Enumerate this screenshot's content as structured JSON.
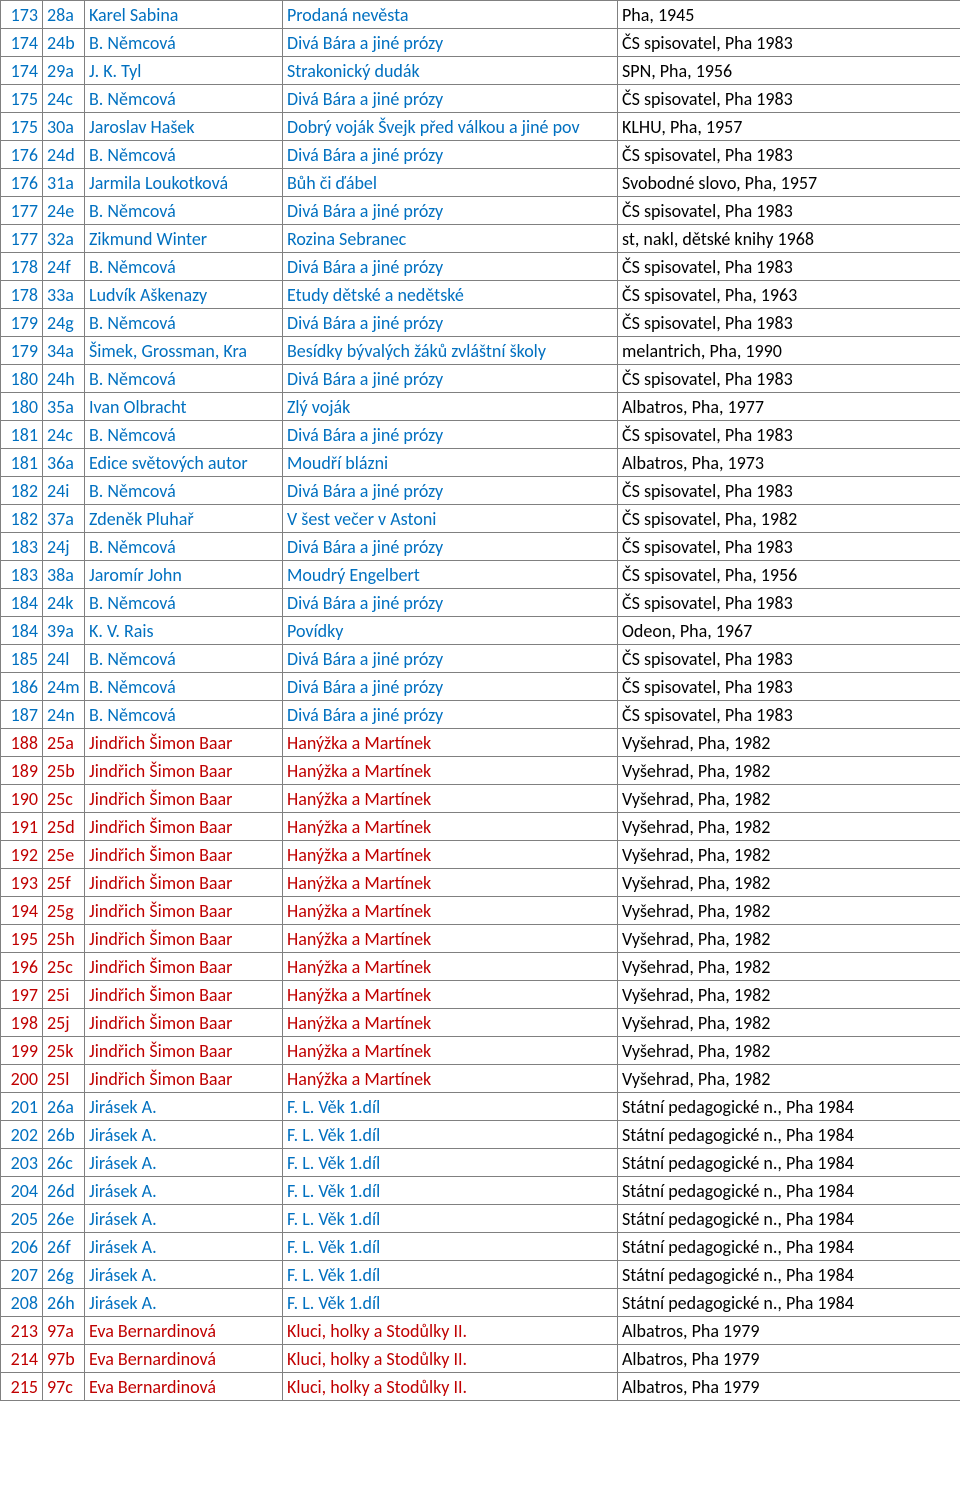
{
  "colors": {
    "blue": "#0070c0",
    "red": "#c00000",
    "black": "#000000"
  },
  "rows": [
    {
      "num": "173",
      "code": "28a",
      "author": "Karel Sabina",
      "title": "Prodaná nevěsta",
      "pub": "Pha, 1945",
      "color": "blue"
    },
    {
      "num": "174",
      "code": "24b",
      "author": "B. Němcová",
      "title": "Divá Bára a jiné prózy",
      "pub": "ČS spisovatel, Pha 1983",
      "color": "blue"
    },
    {
      "num": "174",
      "code": "29a",
      "author": "J. K. Tyl",
      "title": "Strakonický dudák",
      "pub": "SPN, Pha, 1956",
      "color": "blue"
    },
    {
      "num": "175",
      "code": "24c",
      "author": "B. Němcová",
      "title": "Divá Bára a jiné prózy",
      "pub": "ČS spisovatel, Pha 1983",
      "color": "blue"
    },
    {
      "num": "175",
      "code": "30a",
      "author": "Jaroslav Hašek",
      "title": "Dobrý voják Švejk před válkou a jiné pov",
      "pub": "KLHU, Pha, 1957",
      "color": "blue"
    },
    {
      "num": "176",
      "code": "24d",
      "author": "B. Němcová",
      "title": "Divá Bára a jiné prózy",
      "pub": "ČS spisovatel, Pha 1983",
      "color": "blue"
    },
    {
      "num": "176",
      "code": "31a",
      "author": "Jarmila Loukotková",
      "title": "Bůh či ďábel",
      "pub": "Svobodné slovo, Pha, 1957",
      "color": "blue"
    },
    {
      "num": "177",
      "code": "24e",
      "author": "B. Němcová",
      "title": "Divá Bára a jiné prózy",
      "pub": "ČS spisovatel, Pha 1983",
      "color": "blue"
    },
    {
      "num": "177",
      "code": "32a",
      "author": "Zikmund Winter",
      "title": "Rozina Sebranec",
      "pub": "st, nakl, dětské knihy 1968",
      "color": "blue"
    },
    {
      "num": "178",
      "code": "24f",
      "author": "B. Němcová",
      "title": "Divá Bára a jiné prózy",
      "pub": "ČS spisovatel, Pha 1983",
      "color": "blue"
    },
    {
      "num": "178",
      "code": "33a",
      "author": "Ludvík Aškenazy",
      "title": "Etudy dětské a nedětské",
      "pub": "ČS spisovatel, Pha, 1963",
      "color": "blue"
    },
    {
      "num": "179",
      "code": "24g",
      "author": "B. Němcová",
      "title": "Divá Bára a jiné prózy",
      "pub": "ČS spisovatel, Pha 1983",
      "color": "blue"
    },
    {
      "num": "179",
      "code": "34a",
      "author": "Šimek, Grossman, Kra",
      "title": "Besídky bývalých žáků zvláštní školy",
      "pub": "melantrich, Pha, 1990",
      "color": "blue"
    },
    {
      "num": "180",
      "code": "24h",
      "author": "B. Němcová",
      "title": "Divá Bára a jiné prózy",
      "pub": "ČS spisovatel, Pha 1983",
      "color": "blue"
    },
    {
      "num": "180",
      "code": "35a",
      "author": "Ivan Olbracht",
      "title": "Zlý voják",
      "pub": "Albatros, Pha, 1977",
      "color": "blue"
    },
    {
      "num": "181",
      "code": "24c",
      "author": "B. Němcová",
      "title": "Divá Bára a jiné prózy",
      "pub": "ČS spisovatel, Pha 1983",
      "color": "blue"
    },
    {
      "num": "181",
      "code": "36a",
      "author": "Edice světových autor",
      "title": "Moudří blázni",
      "pub": "Albatros, Pha, 1973",
      "color": "blue"
    },
    {
      "num": "182",
      "code": "24i",
      "author": "B. Němcová",
      "title": "Divá Bára a jiné prózy",
      "pub": "ČS spisovatel, Pha 1983",
      "color": "blue"
    },
    {
      "num": "182",
      "code": "37a",
      "author": "Zdeněk Pluhař",
      "title": "V šest večer v Astoni",
      "pub": "ČS spisovatel, Pha, 1982",
      "color": "blue"
    },
    {
      "num": "183",
      "code": "24j",
      "author": "B. Němcová",
      "title": "Divá Bára a jiné prózy",
      "pub": "ČS spisovatel, Pha 1983",
      "color": "blue"
    },
    {
      "num": "183",
      "code": "38a",
      "author": "Jaromír John",
      "title": "Moudrý Engelbert",
      "pub": "ČS spisovatel, Pha, 1956",
      "color": "blue"
    },
    {
      "num": "184",
      "code": "24k",
      "author": "B. Němcová",
      "title": "Divá Bára a jiné prózy",
      "pub": "ČS spisovatel, Pha 1983",
      "color": "blue"
    },
    {
      "num": "184",
      "code": "39a",
      "author": "K. V. Rais",
      "title": "Povídky",
      "pub": "Odeon, Pha, 1967",
      "color": "blue"
    },
    {
      "num": "185",
      "code": "24l",
      "author": "B. Němcová",
      "title": "Divá Bára a jiné prózy",
      "pub": "ČS spisovatel, Pha 1983",
      "color": "blue"
    },
    {
      "num": "186",
      "code": "24m",
      "author": "B. Němcová",
      "title": "Divá Bára a jiné prózy",
      "pub": "ČS spisovatel, Pha 1983",
      "color": "blue"
    },
    {
      "num": "187",
      "code": "24n",
      "author": "B. Němcová",
      "title": "Divá Bára a jiné prózy",
      "pub": "ČS spisovatel, Pha 1983",
      "color": "blue"
    },
    {
      "num": "188",
      "code": "25a",
      "author": "Jindřich Šimon Baar",
      "title": "Hanýžka a Martínek",
      "pub": "Vyšehrad, Pha, 1982",
      "color": "red"
    },
    {
      "num": "189",
      "code": "25b",
      "author": "Jindřich Šimon Baar",
      "title": "Hanýžka a Martínek",
      "pub": "Vyšehrad, Pha, 1982",
      "color": "red"
    },
    {
      "num": "190",
      "code": "25c",
      "author": "Jindřich Šimon Baar",
      "title": "Hanýžka a Martínek",
      "pub": "Vyšehrad, Pha, 1982",
      "color": "red"
    },
    {
      "num": "191",
      "code": "25d",
      "author": "Jindřich Šimon Baar",
      "title": "Hanýžka a Martínek",
      "pub": "Vyšehrad, Pha, 1982",
      "color": "red"
    },
    {
      "num": "192",
      "code": "25e",
      "author": "Jindřich Šimon Baar",
      "title": "Hanýžka a Martínek",
      "pub": "Vyšehrad, Pha, 1982",
      "color": "red"
    },
    {
      "num": "193",
      "code": "25f",
      "author": "Jindřich Šimon Baar",
      "title": "Hanýžka a Martínek",
      "pub": "Vyšehrad, Pha, 1982",
      "color": "red"
    },
    {
      "num": "194",
      "code": "25g",
      "author": "Jindřich Šimon Baar",
      "title": "Hanýžka a Martínek",
      "pub": "Vyšehrad, Pha, 1982",
      "color": "red"
    },
    {
      "num": "195",
      "code": "25h",
      "author": "Jindřich Šimon Baar",
      "title": "Hanýžka a Martínek",
      "pub": "Vyšehrad, Pha, 1982",
      "color": "red"
    },
    {
      "num": "196",
      "code": "25c",
      "author": "Jindřich Šimon Baar",
      "title": "Hanýžka a Martínek",
      "pub": "Vyšehrad, Pha, 1982",
      "color": "red"
    },
    {
      "num": "197",
      "code": "25i",
      "author": "Jindřich Šimon Baar",
      "title": "Hanýžka a Martínek",
      "pub": "Vyšehrad, Pha, 1982",
      "color": "red"
    },
    {
      "num": "198",
      "code": "25j",
      "author": "Jindřich Šimon Baar",
      "title": "Hanýžka a Martínek",
      "pub": "Vyšehrad, Pha, 1982",
      "color": "red"
    },
    {
      "num": "199",
      "code": "25k",
      "author": "Jindřich Šimon Baar",
      "title": "Hanýžka a Martínek",
      "pub": "Vyšehrad, Pha, 1982",
      "color": "red"
    },
    {
      "num": "200",
      "code": "25l",
      "author": "Jindřich Šimon Baar",
      "title": "Hanýžka a Martínek",
      "pub": "Vyšehrad, Pha, 1982",
      "color": "red"
    },
    {
      "num": "201",
      "code": "26a",
      "author": "Jirásek A.",
      "title": "F. L. Věk 1.díl",
      "pub": "Státní pedagogické n., Pha 1984",
      "color": "blue"
    },
    {
      "num": "202",
      "code": "26b",
      "author": "Jirásek A.",
      "title": "F. L. Věk 1.díl",
      "pub": "Státní pedagogické n., Pha 1984",
      "color": "blue"
    },
    {
      "num": "203",
      "code": "26c",
      "author": "Jirásek A.",
      "title": "F. L. Věk 1.díl",
      "pub": "Státní pedagogické n., Pha 1984",
      "color": "blue"
    },
    {
      "num": "204",
      "code": "26d",
      "author": "Jirásek A.",
      "title": "F. L. Věk 1.díl",
      "pub": "Státní pedagogické n., Pha 1984",
      "color": "blue"
    },
    {
      "num": "205",
      "code": "26e",
      "author": "Jirásek A.",
      "title": "F. L. Věk 1.díl",
      "pub": "Státní pedagogické n., Pha 1984",
      "color": "blue"
    },
    {
      "num": "206",
      "code": "26f",
      "author": "Jirásek A.",
      "title": "F. L. Věk 1.díl",
      "pub": "Státní pedagogické n., Pha 1984",
      "color": "blue"
    },
    {
      "num": "207",
      "code": "26g",
      "author": "Jirásek A.",
      "title": "F. L. Věk 1.díl",
      "pub": "Státní pedagogické n., Pha 1984",
      "color": "blue"
    },
    {
      "num": "208",
      "code": "26h",
      "author": "Jirásek A.",
      "title": "F. L. Věk 1.díl",
      "pub": "Státní pedagogické n., Pha 1984",
      "color": "blue"
    },
    {
      "num": "213",
      "code": "97a",
      "author": "Eva Bernardinová",
      "title": "Kluci, holky a Stodůlky II.",
      "pub": "Albatros, Pha 1979",
      "color": "red"
    },
    {
      "num": "214",
      "code": "97b",
      "author": "Eva Bernardinová",
      "title": "Kluci, holky a Stodůlky II.",
      "pub": "Albatros, Pha 1979",
      "color": "red"
    },
    {
      "num": "215",
      "code": "97c",
      "author": "Eva Bernardinová",
      "title": "Kluci, holky a Stodůlky II.",
      "pub": "Albatros, Pha 1979",
      "color": "red"
    }
  ]
}
